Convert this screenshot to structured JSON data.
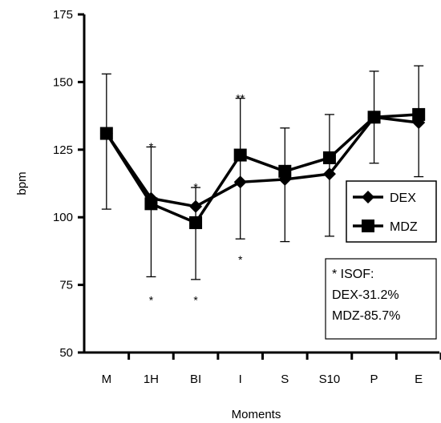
{
  "chart_data": {
    "type": "line",
    "categories": [
      "M",
      "1H",
      "BI",
      "I",
      "S",
      "S10",
      "P",
      "E"
    ],
    "xlabel": "Moments",
    "ylabel": "bpm",
    "ylim": [
      50,
      175
    ],
    "yticks": [
      50,
      75,
      100,
      125,
      150,
      175
    ],
    "grid": false,
    "legend_position": "right",
    "series": [
      {
        "name": "DEX",
        "marker": "diamond",
        "values": [
          131,
          107,
          104,
          113,
          114,
          116,
          137,
          135
        ],
        "error_up": [
          null,
          126,
          111,
          144,
          133,
          138,
          154,
          156
        ],
        "error_down": [
          103,
          78,
          77,
          92,
          91,
          93,
          120,
          115
        ]
      },
      {
        "name": "MDZ",
        "marker": "square",
        "values": [
          131,
          105,
          98,
          123,
          117,
          122,
          137,
          138
        ],
        "error_up": [
          153,
          null,
          null,
          null,
          null,
          null,
          null,
          null
        ],
        "error_down": [
          null,
          null,
          null,
          null,
          null,
          null,
          null,
          null
        ]
      }
    ],
    "annotations": [
      {
        "text": "*",
        "category": "1H",
        "y": 127,
        "position": "above"
      },
      {
        "text": "*",
        "category": "1H",
        "y": 72,
        "position": "below"
      },
      {
        "text": "*",
        "category": "BI",
        "y": 112,
        "position": "above"
      },
      {
        "text": "*",
        "category": "BI",
        "y": 72,
        "position": "below"
      },
      {
        "text": "**",
        "category": "I",
        "y": 145,
        "position": "above"
      },
      {
        "text": "*",
        "category": "I",
        "y": 87,
        "position": "below"
      }
    ],
    "note": {
      "lines": [
        "* ISOF:",
        "DEX-31.2%",
        "MDZ-85.7%"
      ]
    }
  }
}
